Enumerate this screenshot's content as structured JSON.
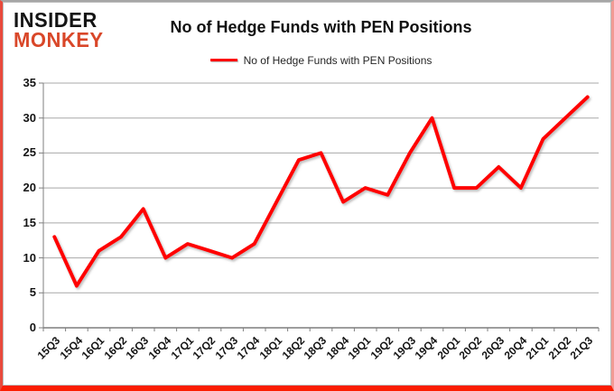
{
  "logo": {
    "line1": "INSIDER",
    "line2": "MONKEY"
  },
  "header": {
    "title": "No of Hedge Funds with PEN Positions"
  },
  "legend": {
    "label": "No of Hedge Funds with PEN Positions",
    "swatch_color": "#ff0000"
  },
  "chart_data": {
    "type": "line",
    "title": "No of Hedge Funds with PEN Positions",
    "categories": [
      "15Q3",
      "15Q4",
      "16Q1",
      "16Q2",
      "16Q3",
      "16Q4",
      "17Q1",
      "17Q2",
      "17Q3",
      "17Q4",
      "18Q1",
      "18Q2",
      "18Q3",
      "18Q4",
      "19Q1",
      "19Q2",
      "19Q3",
      "19Q4",
      "20Q1",
      "20Q2",
      "20Q3",
      "20Q4",
      "21Q1",
      "21Q2",
      "21Q3"
    ],
    "series": [
      {
        "name": "No of Hedge Funds with PEN Positions",
        "color": "#ff0000",
        "values": [
          13,
          6,
          11,
          13,
          17,
          10,
          12,
          11,
          10,
          12,
          18,
          24,
          25,
          18,
          20,
          19,
          25,
          30,
          20,
          20,
          23,
          20,
          27,
          30,
          33
        ]
      }
    ],
    "xlabel": "",
    "ylabel": "",
    "ylim": [
      0,
      35
    ],
    "yticks": [
      0,
      5,
      10,
      15,
      20,
      25,
      30,
      35
    ],
    "grid": "horizontal",
    "legend_position": "top-center"
  },
  "colors": {
    "line": "#ff0000",
    "gridline": "#a8a8a8",
    "axis": "#7f7f7f",
    "logo_black": "#141414",
    "logo_red": "#d94729",
    "border_red": "#fb1d02"
  }
}
